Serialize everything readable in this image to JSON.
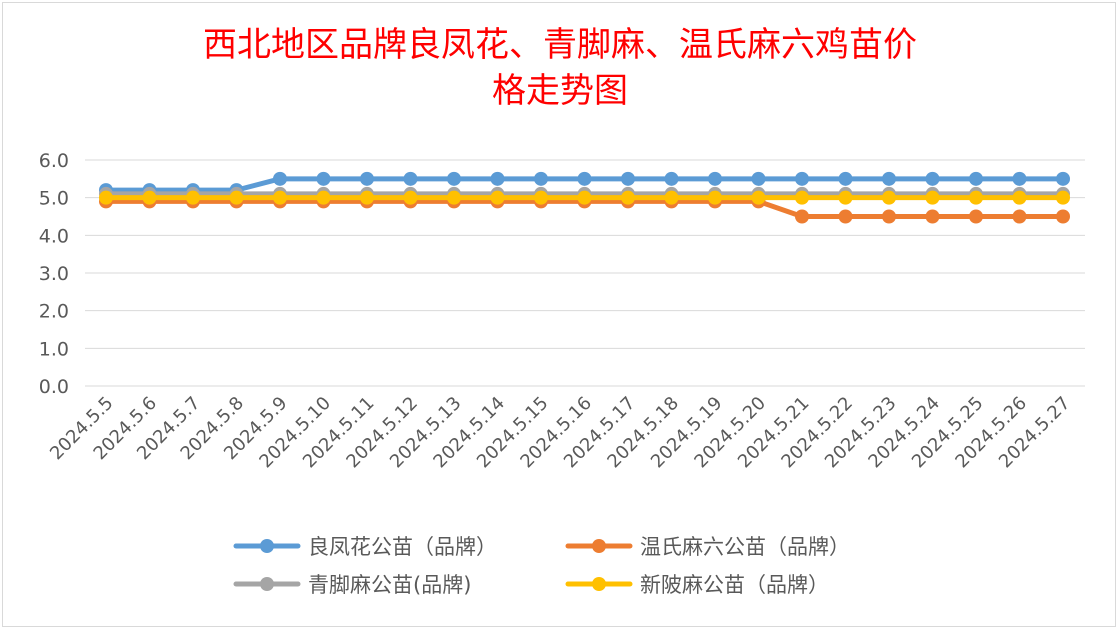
{
  "chart_data": {
    "type": "line",
    "title_line1": "西北地区品牌良凤花、青脚麻、温氏麻六鸡苗价",
    "title_line2": "格走势图",
    "categories": [
      "2024.5.5",
      "2024.5.6",
      "2024.5.7",
      "2024.5.8",
      "2024.5.9",
      "2024.5.10",
      "2024.5.11",
      "2024.5.12",
      "2024.5.13",
      "2024.5.14",
      "2024.5.15",
      "2024.5.16",
      "2024.5.17",
      "2024.5.18",
      "2024.5.19",
      "2024.5.20",
      "2024.5.21",
      "2024.5.22",
      "2024.5.23",
      "2024.5.24",
      "2024.5.25",
      "2024.5.26",
      "2024.5.27"
    ],
    "ylim": [
      0,
      6
    ],
    "yticks": [
      "0.0",
      "1.0",
      "2.0",
      "3.0",
      "4.0",
      "5.0",
      "6.0"
    ],
    "grid": true,
    "legend_position": "bottom",
    "series": [
      {
        "name": "良凤花公苗（品牌）",
        "color": "#5b9bd5",
        "values": [
          5.2,
          5.2,
          5.2,
          5.2,
          5.5,
          5.5,
          5.5,
          5.5,
          5.5,
          5.5,
          5.5,
          5.5,
          5.5,
          5.5,
          5.5,
          5.5,
          5.5,
          5.5,
          5.5,
          5.5,
          5.5,
          5.5,
          5.5
        ]
      },
      {
        "name": "温氏麻六公苗（品牌）",
        "color": "#ed7d31",
        "values": [
          4.9,
          4.9,
          4.9,
          4.9,
          4.9,
          4.9,
          4.9,
          4.9,
          4.9,
          4.9,
          4.9,
          4.9,
          4.9,
          4.9,
          4.9,
          4.9,
          4.5,
          4.5,
          4.5,
          4.5,
          4.5,
          4.5,
          4.5
        ]
      },
      {
        "name": "青脚麻公苗(品牌)",
        "color": "#a5a5a5",
        "values": [
          5.1,
          5.1,
          5.1,
          5.1,
          5.1,
          5.1,
          5.1,
          5.1,
          5.1,
          5.1,
          5.1,
          5.1,
          5.1,
          5.1,
          5.1,
          5.1,
          5.1,
          5.1,
          5.1,
          5.1,
          5.1,
          5.1,
          5.1
        ]
      },
      {
        "name": "新陂麻公苗（品牌）",
        "color": "#ffc000",
        "values": [
          5.0,
          5.0,
          5.0,
          5.0,
          5.0,
          5.0,
          5.0,
          5.0,
          5.0,
          5.0,
          5.0,
          5.0,
          5.0,
          5.0,
          5.0,
          5.0,
          5.0,
          5.0,
          5.0,
          5.0,
          5.0,
          5.0,
          5.0
        ]
      }
    ]
  }
}
